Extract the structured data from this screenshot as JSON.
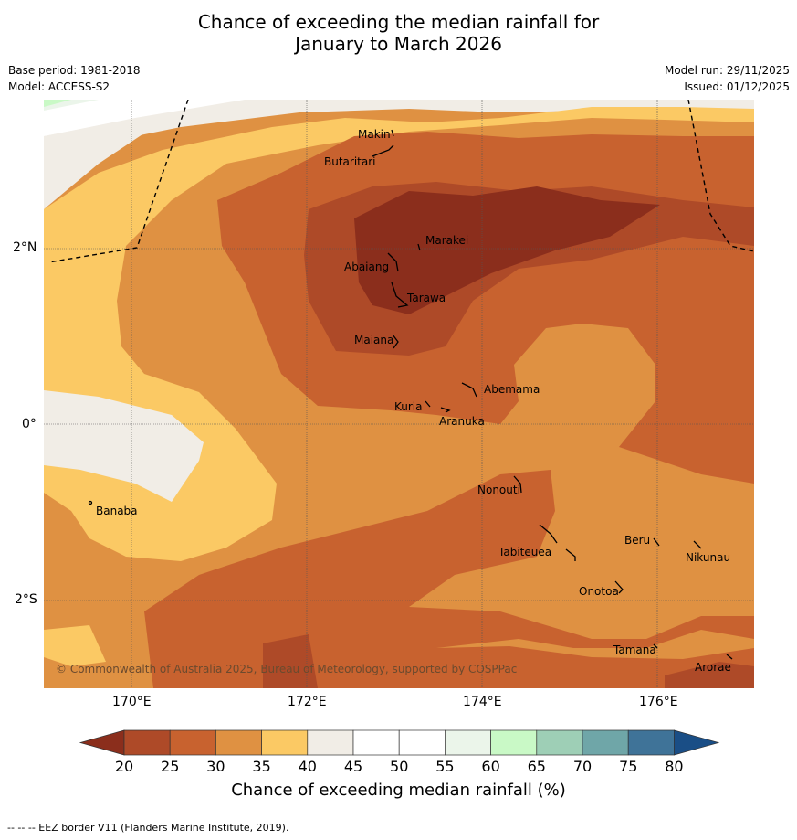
{
  "title_line1": "Chance of exceeding the median rainfall for",
  "title_line2": "January to March 2026",
  "left_meta": [
    "Base period: 1981-2018",
    "Model: ACCESS-S2"
  ],
  "right_meta": [
    "Model run: 29/11/2025",
    "Issued: 01/12/2025"
  ],
  "lat_ticks": [
    "2°N",
    "0°",
    "2°S"
  ],
  "lon_ticks": [
    "170°E",
    "172°E",
    "174°E",
    "176°E"
  ],
  "places": [
    {
      "name": "Makin"
    },
    {
      "name": "Butaritari"
    },
    {
      "name": "Marakei"
    },
    {
      "name": "Abaiang"
    },
    {
      "name": "Tarawa"
    },
    {
      "name": "Maiana"
    },
    {
      "name": "Abemama"
    },
    {
      "name": "Kuria"
    },
    {
      "name": "Aranuka"
    },
    {
      "name": "Banaba"
    },
    {
      "name": "Nonouti"
    },
    {
      "name": "Tabiteuea"
    },
    {
      "name": "Beru"
    },
    {
      "name": "Nikunau"
    },
    {
      "name": "Onotoa"
    },
    {
      "name": "Tamana"
    },
    {
      "name": "Arorae"
    }
  ],
  "copyright": "© Commonwealth of Australia 2025, Bureau of Meteorology, supported by COSPPac",
  "colorbar": {
    "ticks": [
      "20",
      "25",
      "30",
      "35",
      "40",
      "45",
      "50",
      "55",
      "60",
      "65",
      "70",
      "75",
      "80"
    ],
    "colors": [
      "#ae4a28",
      "#c8622f",
      "#df9142",
      "#fbc964",
      "#f1ede6",
      "#ffffff",
      "#ffffff",
      "#ebf5ea",
      "#c9f9c6",
      "#9ecfb6",
      "#6fa6a8",
      "#3f7398"
    ],
    "under_color": "#8b2e1c",
    "over_color": "#1a4e86",
    "label": "Chance of exceeding median rainfall (%)"
  },
  "footnote": "--  --  -- EEZ border V11 (Flanders Marine Institute, 2019)."
}
